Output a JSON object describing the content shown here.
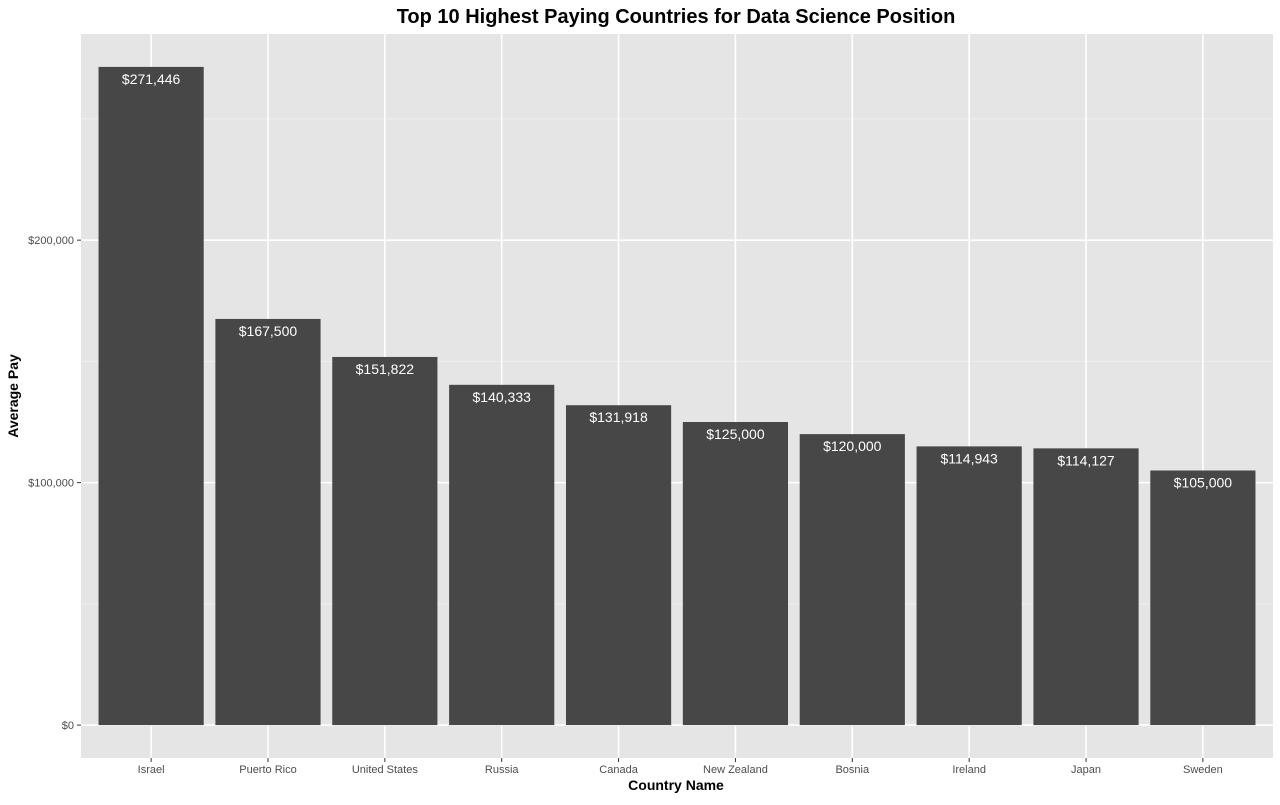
{
  "chart_data": {
    "type": "bar",
    "title": "Top 10 Highest Paying Countries for Data Science Position",
    "xlabel": "Country Name",
    "ylabel": "Average Pay",
    "categories": [
      "Israel",
      "Puerto Rico",
      "United States",
      "Russia",
      "Canada",
      "New Zealand",
      "Bosnia",
      "Ireland",
      "Japan",
      "Sweden"
    ],
    "values": [
      271446,
      167500,
      151822,
      140333,
      131918,
      125000,
      120000,
      114943,
      114127,
      105000
    ],
    "data_labels": [
      "$271,446",
      "$167,500",
      "$151,822",
      "$140,333",
      "$131,918",
      "$125,000",
      "$120,000",
      "$114,943",
      "$114,127",
      "$105,000"
    ],
    "y_ticks": [
      0,
      100000,
      200000
    ],
    "y_tick_labels": [
      "$0",
      "$100,000",
      "$200,000"
    ],
    "ylim": [
      -13572,
      285018
    ],
    "grid": true,
    "colors": {
      "panel_background": "#e5e5e5",
      "grid_major": "#ffffff",
      "grid_minor": "#f2f2f2",
      "bar_fill": "#474747",
      "label_text": "#ffffff",
      "tick_text": "#4d4d4d",
      "tick_mark": "#333333"
    }
  }
}
